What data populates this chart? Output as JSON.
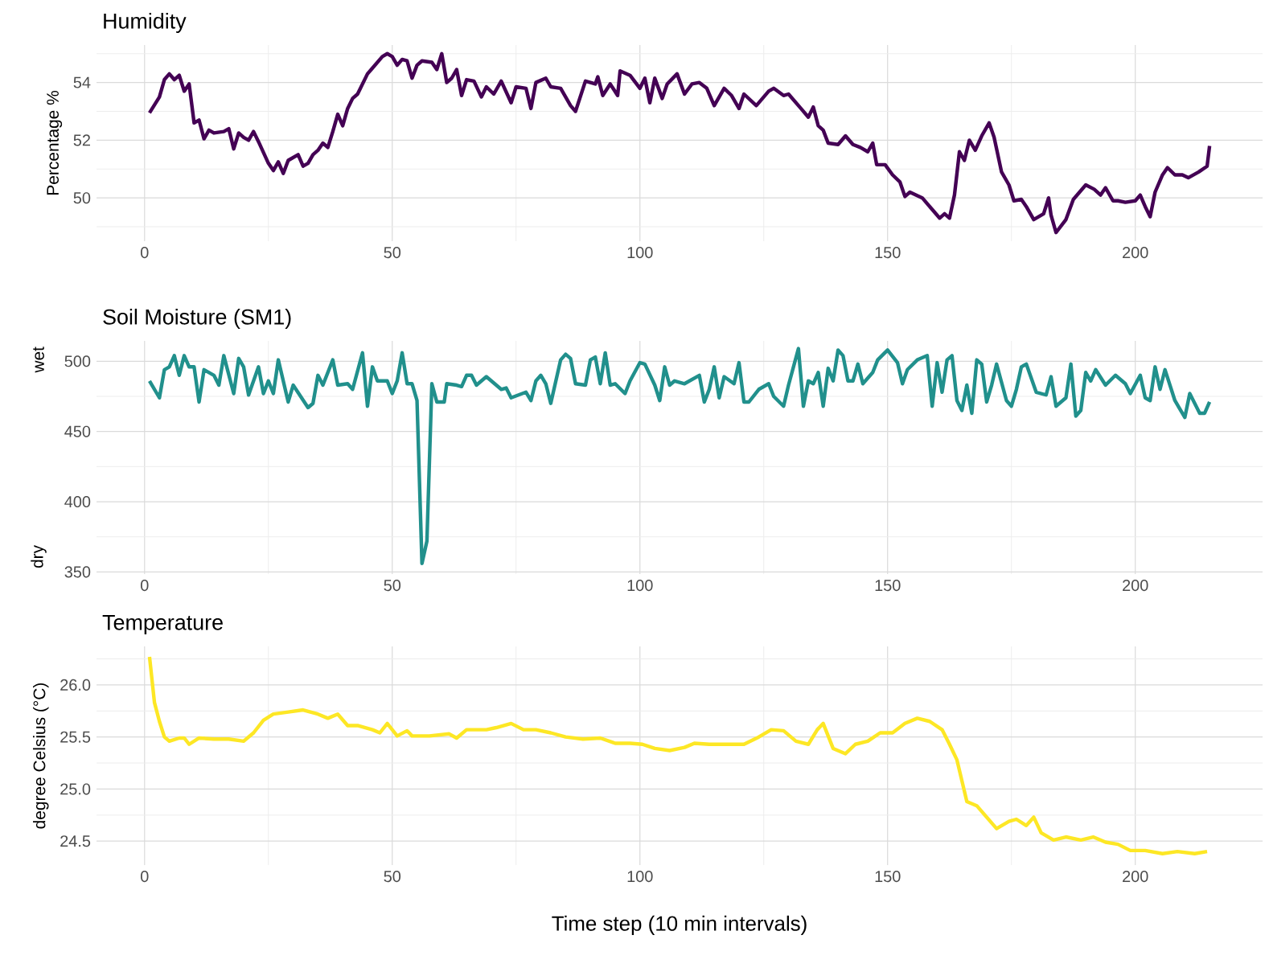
{
  "chart_data": [
    {
      "type": "line",
      "title": "Humidity",
      "ylabel": "Percentage %",
      "grid": true,
      "xlim": [
        -9.7,
        225.7
      ],
      "ylim": [
        48.5,
        55.3
      ],
      "xticks": [
        0,
        {
          "value": 25,
          "label": null
        },
        50,
        {
          "value": 75,
          "label": null
        },
        100,
        {
          "value": 125,
          "label": null
        },
        150,
        {
          "value": 175,
          "label": null
        },
        200
      ],
      "yticks": [
        {
          "value": 49,
          "label": null
        },
        50,
        {
          "value": 51,
          "label": null
        },
        52,
        {
          "value": 53,
          "label": null
        },
        54,
        {
          "value": 55,
          "label": null
        }
      ],
      "x": [
        1,
        3,
        4,
        5,
        6,
        7,
        8,
        9,
        10,
        11,
        12,
        13,
        14,
        16,
        17,
        18,
        19,
        20,
        21,
        22,
        23,
        25,
        26,
        27,
        28,
        29,
        31,
        32,
        33,
        34,
        35,
        36,
        37,
        38,
        39,
        40,
        41,
        42,
        43,
        45,
        46,
        48,
        49,
        50,
        51,
        52,
        53,
        54,
        55,
        56,
        58,
        59,
        60,
        61,
        62,
        63,
        64,
        65,
        66.5,
        68,
        69,
        70.5,
        72,
        74,
        75,
        77,
        78,
        79,
        81,
        82,
        84,
        86,
        87,
        89,
        91,
        91.5,
        92.5,
        94,
        95.5,
        96,
        98,
        100,
        101,
        102,
        103,
        104.5,
        105.5,
        107.5,
        109,
        110.5,
        112,
        113.5,
        115,
        117,
        118.5,
        120,
        121,
        123.5,
        126,
        127,
        129,
        130,
        132.5,
        134,
        135,
        136,
        137,
        138,
        140,
        141.5,
        143,
        144.5,
        146,
        147,
        147.8,
        149.5,
        151,
        152.5,
        153.5,
        154.5,
        157,
        159,
        160.5,
        161.5,
        162.5,
        163.5,
        164.5,
        165.5,
        166.5,
        167.7,
        169,
        170.5,
        171.5,
        173,
        174.5,
        175.5,
        177,
        178,
        179.5,
        181.5,
        182.5,
        183,
        184,
        186,
        187.5,
        190,
        191.7,
        193,
        194,
        195.5,
        196.5,
        198,
        200,
        201,
        202,
        203,
        204,
        205.5,
        206.5,
        208,
        209.5,
        210.7,
        212.8,
        214.5,
        215
      ],
      "series": [
        {
          "color": "#440154",
          "values": [
            52.95,
            53.5,
            54.1,
            54.3,
            54.1,
            54.25,
            53.7,
            53.95,
            52.6,
            52.7,
            52.05,
            52.35,
            52.25,
            52.3,
            52.4,
            51.7,
            52.25,
            52.1,
            52.0,
            52.3,
            51.95,
            51.2,
            50.95,
            51.25,
            50.85,
            51.3,
            51.5,
            51.1,
            51.2,
            51.5,
            51.65,
            51.9,
            51.75,
            52.3,
            52.9,
            52.5,
            53.1,
            53.45,
            53.6,
            54.3,
            54.5,
            54.9,
            55.0,
            54.9,
            54.6,
            54.8,
            54.75,
            54.15,
            54.6,
            54.75,
            54.7,
            54.45,
            55.0,
            54.0,
            54.15,
            54.45,
            53.55,
            54.1,
            54.05,
            53.5,
            53.85,
            53.6,
            54.05,
            53.3,
            53.85,
            53.8,
            53.1,
            54.0,
            54.15,
            53.85,
            53.8,
            53.2,
            53.0,
            54.05,
            53.95,
            54.2,
            53.55,
            53.95,
            53.55,
            54.4,
            54.25,
            53.8,
            54.15,
            53.3,
            54.15,
            53.45,
            53.95,
            54.3,
            53.6,
            53.95,
            54.0,
            53.8,
            53.2,
            53.8,
            53.55,
            53.1,
            53.6,
            53.2,
            53.7,
            53.8,
            53.55,
            53.6,
            53.1,
            52.8,
            53.15,
            52.5,
            52.35,
            51.9,
            51.85,
            52.15,
            51.85,
            51.75,
            51.6,
            51.9,
            51.15,
            51.15,
            50.8,
            50.55,
            50.05,
            50.2,
            50.0,
            49.6,
            49.3,
            49.45,
            49.3,
            50.1,
            51.6,
            51.3,
            52.0,
            51.65,
            52.15,
            52.6,
            52.1,
            50.9,
            50.45,
            49.9,
            49.95,
            49.7,
            49.25,
            49.45,
            50.0,
            49.4,
            48.8,
            49.25,
            49.95,
            50.45,
            50.3,
            50.1,
            50.35,
            49.9,
            49.9,
            49.85,
            49.9,
            50.1,
            49.7,
            49.35,
            50.2,
            50.8,
            51.05,
            50.8,
            50.8,
            50.7,
            50.9,
            51.1,
            51.8
          ]
        }
      ]
    },
    {
      "type": "line",
      "title": "Soil Moisture (SM1)",
      "grid": true,
      "annotations": [
        "wet",
        "dry"
      ],
      "xlim": [
        -9.7,
        225.7
      ],
      "ylim": [
        348.5,
        514.5
      ],
      "xticks": [
        0,
        {
          "value": 25,
          "label": null
        },
        50,
        {
          "value": 75,
          "label": null
        },
        100,
        {
          "value": 125,
          "label": null
        },
        150,
        {
          "value": 175,
          "label": null
        },
        200
      ],
      "yticks": [
        350,
        {
          "value": 375,
          "label": null
        },
        400,
        {
          "value": 425,
          "label": null
        },
        450,
        {
          "value": 475,
          "label": null
        },
        500
      ],
      "x": [
        1,
        3,
        4,
        5,
        6,
        7,
        8,
        9,
        10,
        11,
        12,
        14,
        15,
        16,
        18,
        19,
        20,
        21,
        23,
        24,
        25,
        26,
        27,
        29,
        30,
        33,
        34,
        35,
        36,
        38,
        39,
        41,
        42,
        44,
        45,
        46,
        47,
        49,
        50,
        51,
        52,
        53,
        54,
        55,
        56,
        57,
        58,
        59,
        60.5,
        61,
        63,
        64,
        65,
        66,
        67,
        69,
        70,
        72,
        73,
        74,
        77,
        78,
        79,
        80,
        81,
        82,
        84,
        85,
        86,
        87,
        89,
        90,
        91,
        92,
        93,
        94,
        95,
        97,
        98,
        100,
        101,
        103,
        104,
        105,
        106,
        107,
        109,
        112,
        113,
        114,
        115,
        116,
        117,
        119,
        120,
        121,
        122,
        124,
        126,
        127,
        129,
        130,
        132,
        133,
        134,
        135,
        136,
        137,
        138,
        139,
        140,
        141,
        142,
        143,
        144,
        145,
        147,
        148,
        150,
        152,
        153,
        154,
        156,
        158,
        159,
        160,
        161,
        162,
        163,
        164,
        165,
        166,
        167,
        168,
        169,
        170,
        171,
        172,
        174,
        175,
        176,
        177,
        178,
        180,
        182,
        183,
        184,
        186,
        187,
        188,
        189,
        190,
        191,
        192,
        194,
        196,
        198,
        199,
        201,
        202,
        203,
        204,
        205,
        206,
        208,
        210,
        211,
        213,
        214,
        215
      ],
      "series": [
        {
          "color": "#21908c",
          "values": [
            486,
            474,
            494,
            496,
            504,
            490,
            504,
            496,
            496,
            471,
            494,
            490,
            483,
            504,
            477,
            502,
            496,
            476,
            496,
            477,
            486,
            477,
            501,
            471,
            483,
            467,
            470,
            490,
            483,
            501,
            483,
            484,
            480,
            506,
            468,
            496,
            486,
            486,
            477,
            486,
            506,
            484,
            484,
            472,
            356,
            372,
            484,
            471,
            471,
            484,
            483,
            482,
            490,
            490,
            483,
            489,
            486,
            480,
            481,
            474,
            478,
            472,
            486,
            490,
            484,
            470,
            501,
            505,
            502,
            484,
            483,
            501,
            503,
            484,
            506,
            483,
            484,
            477,
            486,
            499,
            498,
            483,
            472,
            496,
            483,
            486,
            484,
            490,
            471,
            480,
            496,
            474,
            489,
            484,
            499,
            471,
            471,
            480,
            484,
            475,
            468,
            483,
            509,
            468,
            486,
            484,
            492,
            468,
            495,
            486,
            508,
            504,
            486,
            486,
            498,
            484,
            492,
            501,
            508,
            499,
            484,
            494,
            501,
            504,
            468,
            499,
            478,
            501,
            504,
            472,
            465,
            483,
            463,
            501,
            498,
            471,
            483,
            498,
            472,
            468,
            480,
            496,
            498,
            478,
            476,
            489,
            468,
            474,
            498,
            461,
            465,
            492,
            486,
            494,
            483,
            490,
            484,
            477,
            490,
            474,
            472,
            496,
            480,
            494,
            472,
            460,
            477,
            463,
            463,
            471
          ]
        }
      ]
    },
    {
      "type": "line",
      "title": "Temperature",
      "ylabel": "degree Celsius (°C)",
      "xlabel": "Time step (10 min intervals)",
      "grid": true,
      "xlim": [
        -9.7,
        225.7
      ],
      "ylim": [
        24.27,
        26.37
      ],
      "xticks": [
        0,
        {
          "value": 25,
          "label": null
        },
        50,
        {
          "value": 75,
          "label": null
        },
        100,
        {
          "value": 125,
          "label": null
        },
        150,
        {
          "value": 175,
          "label": null
        },
        200
      ],
      "yticks": [
        {
          "value": 24.5,
          "label": "24.5"
        },
        {
          "value": 24.75,
          "label": null
        },
        {
          "value": 25,
          "label": "25.0"
        },
        {
          "value": 25.25,
          "label": null
        },
        {
          "value": 25.5,
          "label": "25.5"
        },
        {
          "value": 25.75,
          "label": null
        },
        {
          "value": 26,
          "label": "26.0"
        },
        {
          "value": 26.25,
          "label": null
        }
      ],
      "x": [
        1,
        2,
        3,
        4,
        5,
        7,
        8,
        9,
        11,
        14,
        17,
        20,
        22,
        24,
        26,
        29,
        32,
        35,
        37,
        39,
        41,
        43,
        46,
        47.5,
        49,
        51,
        53,
        54,
        57.5,
        61.5,
        63,
        65,
        69,
        71,
        74,
        76.5,
        79,
        82,
        85,
        88.5,
        92,
        95,
        98,
        100.5,
        103,
        106,
        109,
        111,
        114,
        117.5,
        121,
        124,
        126.5,
        129,
        131.5,
        134,
        135.8,
        137,
        139,
        141.5,
        143.5,
        146,
        148.5,
        151,
        153.5,
        156,
        158.5,
        161,
        162.5,
        164,
        166,
        168,
        170,
        172,
        174.5,
        176,
        178,
        179.5,
        181,
        183.5,
        186,
        189,
        191.5,
        194,
        196.5,
        199,
        202,
        205.5,
        208.5,
        212,
        214.5
      ],
      "series": [
        {
          "color": "#fde725",
          "values": [
            26.27,
            25.83,
            25.65,
            25.5,
            25.46,
            25.49,
            25.49,
            25.43,
            25.49,
            25.48,
            25.48,
            25.46,
            25.54,
            25.66,
            25.72,
            25.74,
            25.76,
            25.72,
            25.68,
            25.72,
            25.61,
            25.61,
            25.57,
            25.54,
            25.63,
            25.51,
            25.56,
            25.51,
            25.51,
            25.53,
            25.49,
            25.57,
            25.57,
            25.59,
            25.63,
            25.57,
            25.57,
            25.54,
            25.5,
            25.48,
            25.49,
            25.44,
            25.44,
            25.43,
            25.39,
            25.37,
            25.4,
            25.44,
            25.43,
            25.43,
            25.43,
            25.5,
            25.57,
            25.56,
            25.46,
            25.43,
            25.57,
            25.63,
            25.39,
            25.34,
            25.43,
            25.46,
            25.54,
            25.54,
            25.63,
            25.68,
            25.65,
            25.57,
            25.43,
            25.28,
            24.88,
            24.84,
            24.73,
            24.62,
            24.69,
            24.71,
            24.65,
            24.73,
            24.58,
            24.51,
            24.54,
            24.51,
            24.54,
            24.49,
            24.47,
            24.41,
            24.41,
            24.38,
            24.4,
            24.38,
            24.4
          ]
        }
      ]
    }
  ]
}
